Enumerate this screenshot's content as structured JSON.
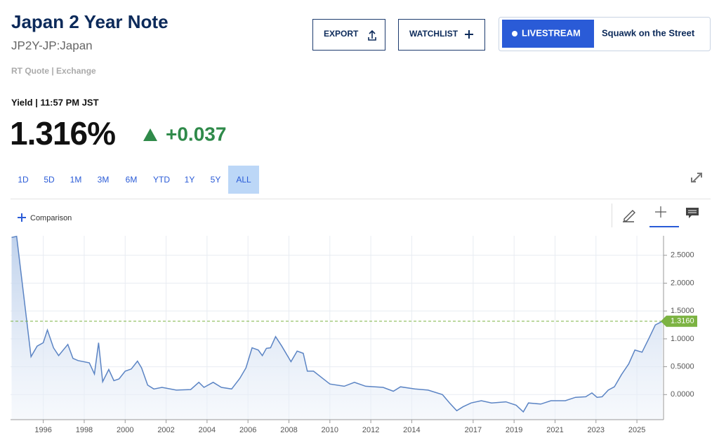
{
  "header": {
    "title": "Japan 2 Year Note",
    "symbol": "JP2Y-JP:Japan",
    "source": "RT Quote | Exchange"
  },
  "actions": [
    "EXPORT",
    "WATCHLIST"
  ],
  "livestream": {
    "label": "LIVESTREAM",
    "show": "Squawk on the Street"
  },
  "quote": {
    "label": "Yield | 11:57 PM JST",
    "price": "1.316%",
    "change": "+0.037"
  },
  "ranges": {
    "items": [
      "1D",
      "5D",
      "1M",
      "3M",
      "6M",
      "YTD",
      "1Y",
      "5Y",
      "ALL"
    ],
    "selected": 8
  },
  "comparison": "Comparison",
  "chart_data": {
    "type": "line",
    "color": "#5b84c4",
    "x": [
      1994.45,
      1994.7,
      1995.4,
      1995.7,
      1996.0,
      1996.2,
      1996.5,
      1996.75,
      1997.2,
      1997.45,
      1997.7,
      1998.25,
      1998.5,
      1998.7,
      1998.9,
      1999.2,
      1999.45,
      1999.7,
      2000.0,
      2000.3,
      2000.6,
      2000.8,
      2001.1,
      2001.4,
      2001.8,
      2002.5,
      2003.2,
      2003.6,
      2003.85,
      2004.3,
      2004.7,
      2005.2,
      2005.6,
      2005.9,
      2006.2,
      2006.5,
      2006.7,
      2006.9,
      2007.1,
      2007.35,
      2007.65,
      2008.1,
      2008.4,
      2008.7,
      2008.9,
      2009.2,
      2009.65,
      2010.0,
      2010.7,
      2011.2,
      2011.75,
      2012.6,
      2013.1,
      2013.45,
      2014.15,
      2014.8,
      2015.5,
      2015.85,
      2016.2,
      2016.5,
      2016.9,
      2017.4,
      2017.9,
      2018.6,
      2019.1,
      2019.45,
      2019.7,
      2020.3,
      2020.8,
      2021.5,
      2022.0,
      2022.5,
      2022.8,
      2023.05,
      2023.3,
      2023.6,
      2023.9,
      2024.25,
      2024.6,
      2024.9,
      2025.25,
      2025.6,
      2025.9,
      2026.25
    ],
    "values": [
      2.82,
      2.84,
      0.68,
      0.87,
      0.93,
      1.16,
      0.84,
      0.7,
      0.9,
      0.65,
      0.61,
      0.57,
      0.37,
      0.93,
      0.23,
      0.45,
      0.25,
      0.28,
      0.42,
      0.46,
      0.6,
      0.48,
      0.17,
      0.1,
      0.13,
      0.08,
      0.09,
      0.22,
      0.13,
      0.22,
      0.13,
      0.1,
      0.29,
      0.48,
      0.84,
      0.8,
      0.7,
      0.83,
      0.84,
      1.04,
      0.87,
      0.59,
      0.78,
      0.74,
      0.42,
      0.42,
      0.29,
      0.19,
      0.15,
      0.22,
      0.15,
      0.13,
      0.06,
      0.14,
      0.1,
      0.08,
      0.0,
      -0.15,
      -0.29,
      -0.22,
      -0.15,
      -0.11,
      -0.15,
      -0.13,
      -0.19,
      -0.31,
      -0.15,
      -0.17,
      -0.11,
      -0.11,
      -0.05,
      -0.04,
      0.03,
      -0.05,
      -0.04,
      0.08,
      0.14,
      0.36,
      0.55,
      0.8,
      0.76,
      1.02,
      1.25,
      1.316
    ],
    "xlim": [
      1994.4,
      2026.3
    ],
    "xticks": [
      1996,
      1998,
      2000,
      2002,
      2004,
      2006,
      2008,
      2010,
      2012,
      2014,
      2017,
      2019,
      2021,
      2023,
      2025
    ],
    "ylim": [
      -0.45,
      2.85
    ],
    "yticks": [
      {
        "value": 0,
        "label": "0.0000"
      },
      {
        "value": 0.5,
        "label": "0.5000"
      },
      {
        "value": 1,
        "label": "1.0000"
      },
      {
        "value": 1.5,
        "label": "1.5000"
      },
      {
        "value": 2,
        "label": "2.0000"
      },
      {
        "value": 2.5,
        "label": "2.5000"
      }
    ],
    "grid": true,
    "current": {
      "value": 1.316,
      "label": "1.3160",
      "color": "#7cb342"
    }
  }
}
